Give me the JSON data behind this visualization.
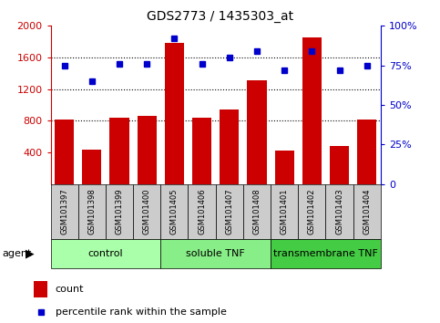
{
  "title": "GDS2773 / 1435303_at",
  "samples": [
    "GSM101397",
    "GSM101398",
    "GSM101399",
    "GSM101400",
    "GSM101405",
    "GSM101406",
    "GSM101407",
    "GSM101408",
    "GSM101401",
    "GSM101402",
    "GSM101403",
    "GSM101404"
  ],
  "counts": [
    820,
    430,
    840,
    860,
    1780,
    840,
    940,
    1310,
    420,
    1850,
    480,
    820
  ],
  "percentiles": [
    75,
    65,
    76,
    76,
    92,
    76,
    80,
    84,
    72,
    84,
    72,
    75
  ],
  "groups": [
    {
      "label": "control",
      "start": 0,
      "end": 4,
      "color": "#aaffaa"
    },
    {
      "label": "soluble TNF",
      "start": 4,
      "end": 8,
      "color": "#88ee88"
    },
    {
      "label": "transmembrane TNF",
      "start": 8,
      "end": 12,
      "color": "#44cc44"
    }
  ],
  "ylim_left": [
    0,
    2000
  ],
  "ylim_right": [
    0,
    100
  ],
  "yticks_left": [
    400,
    800,
    1200,
    1600,
    2000
  ],
  "yticks_right": [
    0,
    25,
    50,
    75,
    100
  ],
  "left_color": "#cc0000",
  "right_color": "#0000cc",
  "bar_color": "#cc0000",
  "dot_color": "#0000cc",
  "bg_sample": "#cccccc"
}
